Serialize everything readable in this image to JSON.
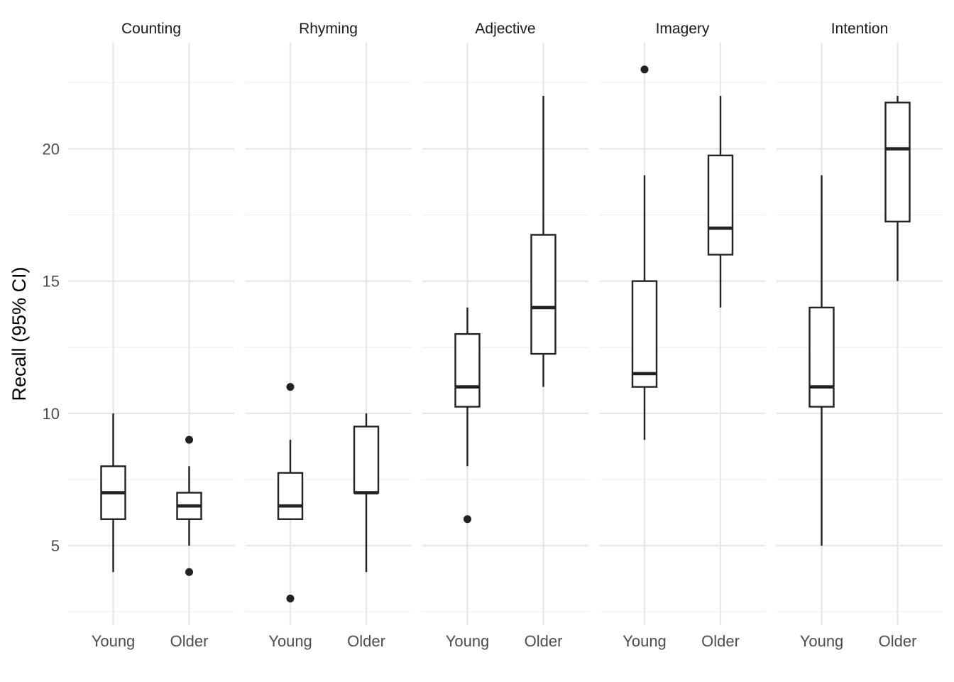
{
  "chart_data": {
    "type": "boxplot",
    "ylabel": "Recall (95% CI)",
    "xlabel": "",
    "ylim": [
      2.3,
      23.8
    ],
    "yticks": [
      5,
      10,
      15,
      20
    ],
    "yticklabels": [
      "5",
      "10",
      "15",
      "20"
    ],
    "grid": true,
    "categories": [
      "Young",
      "Older"
    ],
    "facets": [
      {
        "title": "Counting",
        "boxes": [
          {
            "category": "Young",
            "whisker_low": 4,
            "q1": 6,
            "median": 7,
            "q3": 8,
            "whisker_high": 10,
            "outliers": []
          },
          {
            "category": "Older",
            "whisker_low": 5,
            "q1": 6,
            "median": 6.5,
            "q3": 7,
            "whisker_high": 8,
            "outliers": [
              9,
              4
            ]
          }
        ]
      },
      {
        "title": "Rhyming",
        "boxes": [
          {
            "category": "Young",
            "whisker_low": 6,
            "q1": 6,
            "median": 6.5,
            "q3": 7.75,
            "whisker_high": 9,
            "outliers": [
              11,
              3
            ]
          },
          {
            "category": "Older",
            "whisker_low": 4,
            "q1": 7,
            "median": 7,
            "q3": 9.5,
            "whisker_high": 10,
            "outliers": []
          }
        ]
      },
      {
        "title": "Adjective",
        "boxes": [
          {
            "category": "Young",
            "whisker_low": 8,
            "q1": 10.25,
            "median": 11,
            "q3": 13,
            "whisker_high": 14,
            "outliers": [
              6
            ]
          },
          {
            "category": "Older",
            "whisker_low": 11,
            "q1": 12.25,
            "median": 14,
            "q3": 16.75,
            "whisker_high": 22,
            "outliers": []
          }
        ]
      },
      {
        "title": "Imagery",
        "boxes": [
          {
            "category": "Young",
            "whisker_low": 9,
            "q1": 11,
            "median": 11.5,
            "q3": 15,
            "whisker_high": 19,
            "outliers": [
              23
            ]
          },
          {
            "category": "Older",
            "whisker_low": 14,
            "q1": 16,
            "median": 17,
            "q3": 19.75,
            "whisker_high": 22,
            "outliers": []
          }
        ]
      },
      {
        "title": "Intention",
        "boxes": [
          {
            "category": "Young",
            "whisker_low": 5,
            "q1": 10.25,
            "median": 11,
            "q3": 14,
            "whisker_high": 19,
            "outliers": []
          },
          {
            "category": "Older",
            "whisker_low": 15,
            "q1": 17.25,
            "median": 20,
            "q3": 21.75,
            "whisker_high": 22,
            "outliers": []
          }
        ]
      }
    ]
  }
}
